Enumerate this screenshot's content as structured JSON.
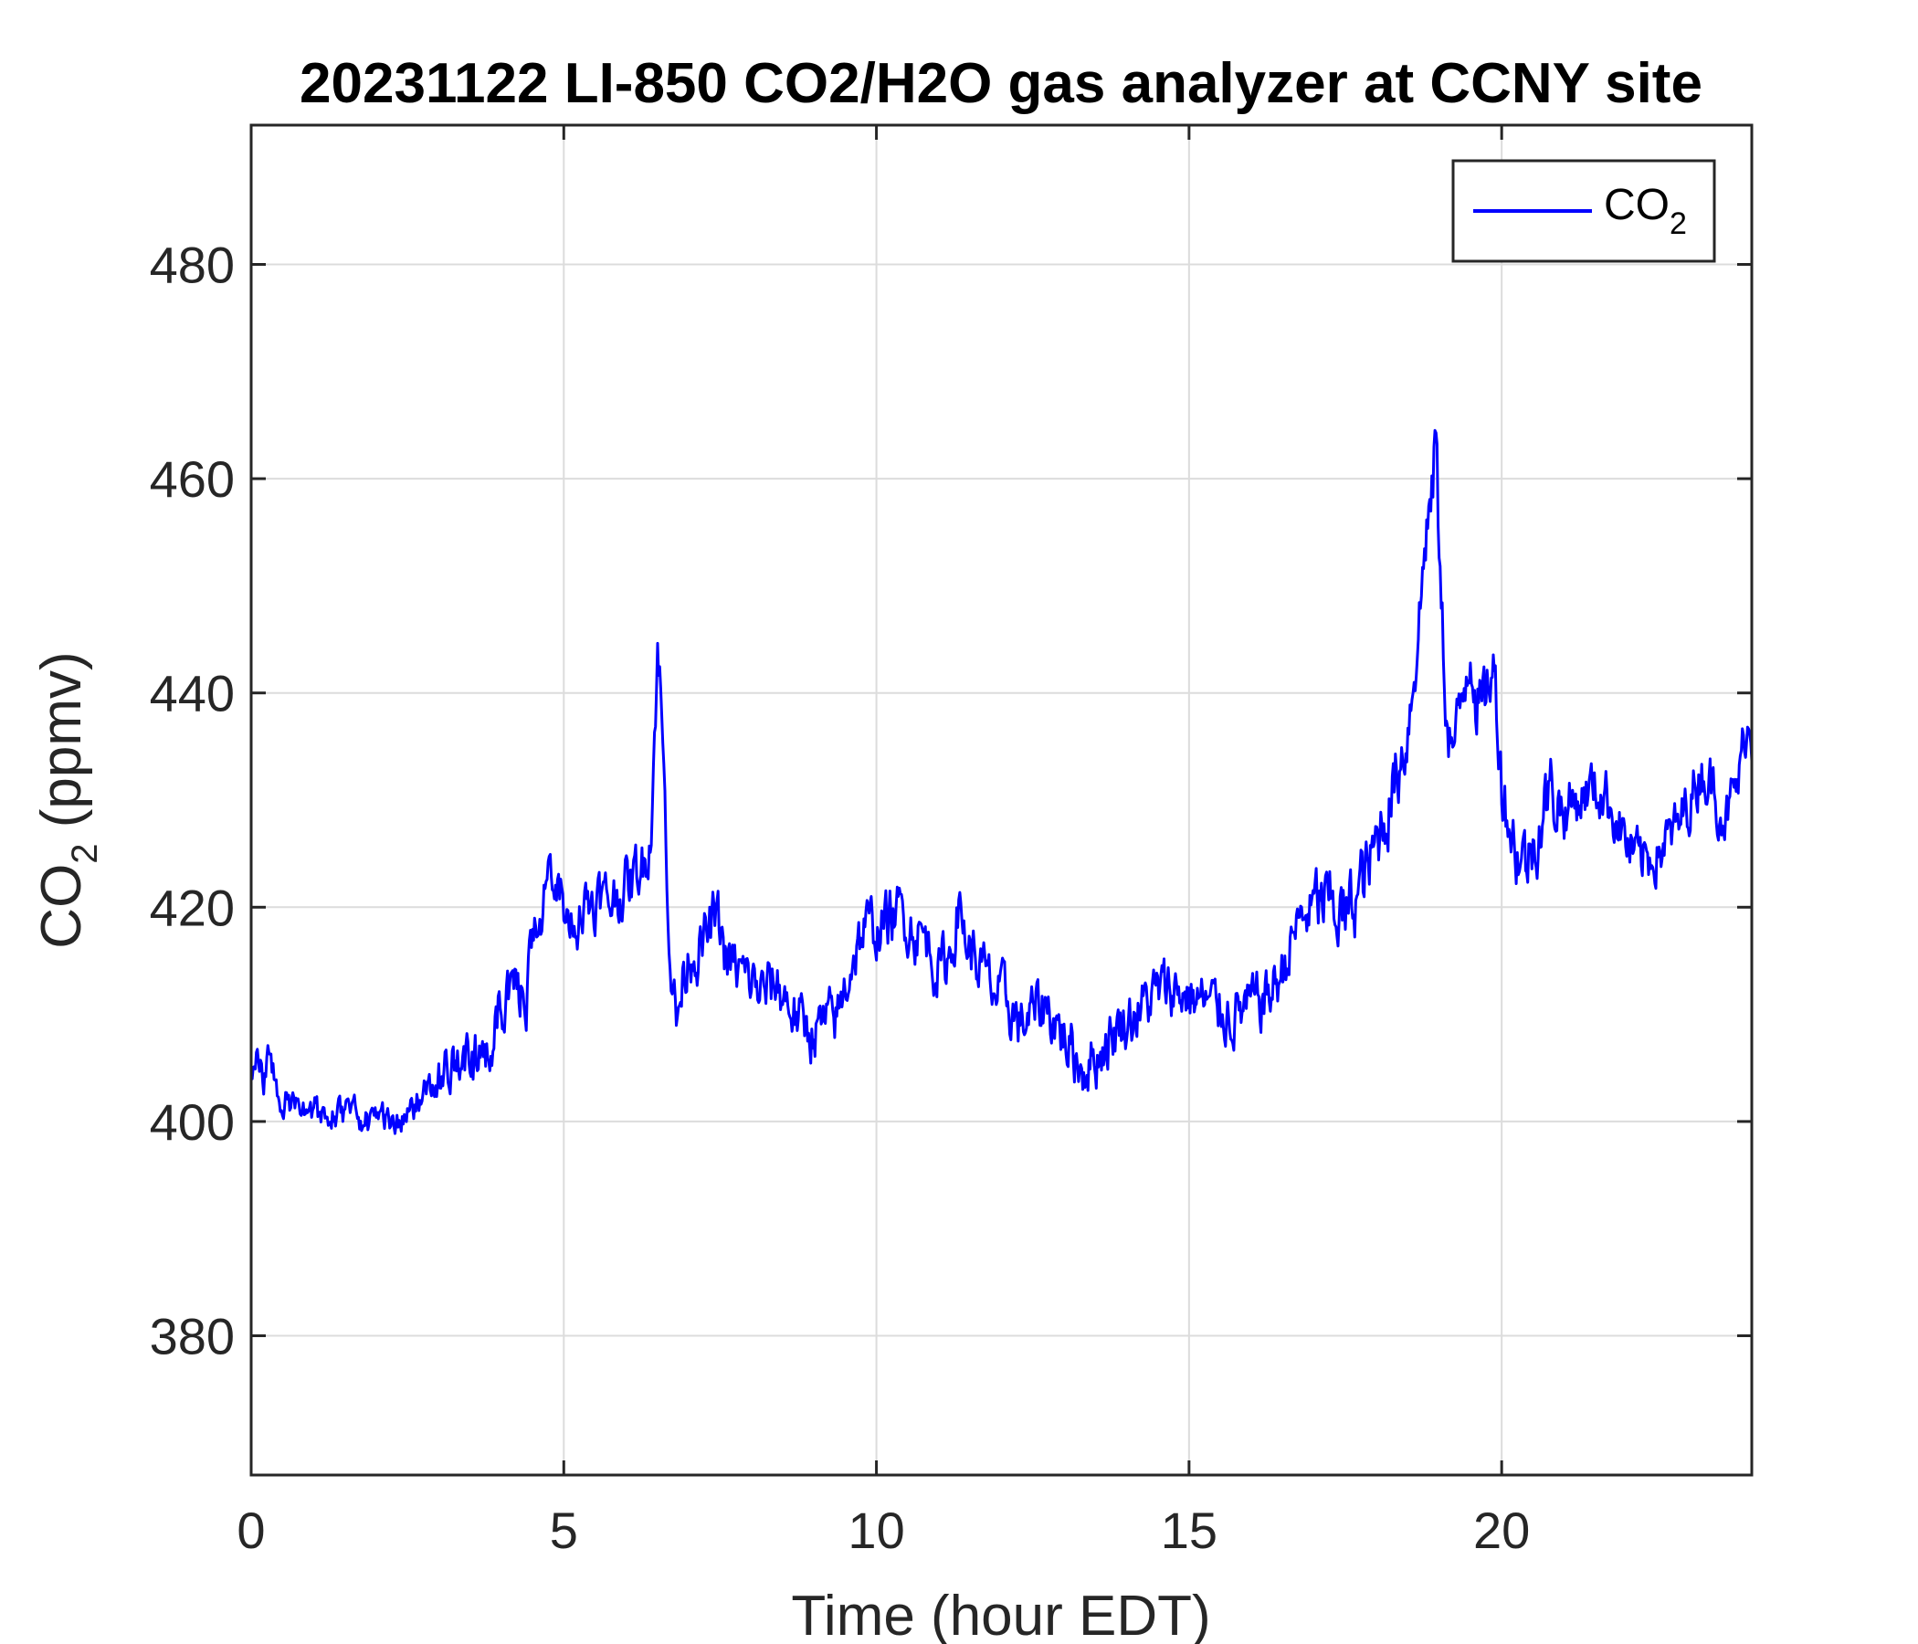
{
  "chart_data": {
    "type": "line",
    "title": "20231122 LI-850 CO2/H2O gas analyzer at CCNY site",
    "xlabel": "Time (hour EDT)",
    "ylabel": {
      "main": "CO",
      "sub": "2",
      "unit": " (ppmv)"
    },
    "xlim": [
      0,
      24
    ],
    "ylim": [
      367,
      493
    ],
    "xticks": [
      0,
      5,
      10,
      15,
      20
    ],
    "yticks": [
      380,
      400,
      420,
      440,
      460,
      480
    ],
    "grid": true,
    "legend": {
      "position": "top-right",
      "label_main": "CO",
      "label_sub": "2"
    },
    "colors": {
      "series": "#0000ff",
      "grid": "#dcdcdc",
      "axis": "#262626"
    },
    "series": [
      {
        "name": "CO2",
        "anchors": [
          [
            0.0,
            403
          ],
          [
            0.1,
            407
          ],
          [
            0.2,
            404
          ],
          [
            0.3,
            406
          ],
          [
            0.4,
            403
          ],
          [
            0.6,
            402
          ],
          [
            0.8,
            401.5
          ],
          [
            1.0,
            401
          ],
          [
            1.2,
            400.8
          ],
          [
            1.4,
            400.7
          ],
          [
            1.6,
            400.5
          ],
          [
            1.8,
            400.2
          ],
          [
            2.0,
            400
          ],
          [
            2.2,
            400.3
          ],
          [
            2.4,
            400.8
          ],
          [
            2.6,
            401.5
          ],
          [
            2.8,
            402.5
          ],
          [
            2.9,
            404
          ],
          [
            3.0,
            403
          ],
          [
            3.2,
            404
          ],
          [
            3.4,
            405
          ],
          [
            3.6,
            405.5
          ],
          [
            3.8,
            406.5
          ],
          [
            4.0,
            411
          ],
          [
            4.2,
            411.5
          ],
          [
            4.4,
            412
          ],
          [
            4.5,
            416
          ],
          [
            4.6,
            419
          ],
          [
            4.7,
            422
          ],
          [
            4.8,
            423
          ],
          [
            4.9,
            421
          ],
          [
            5.0,
            420
          ],
          [
            5.1,
            418
          ],
          [
            5.2,
            419
          ],
          [
            5.3,
            420
          ],
          [
            5.5,
            421
          ],
          [
            5.7,
            420.5
          ],
          [
            5.9,
            421.5
          ],
          [
            6.1,
            422.5
          ],
          [
            6.3,
            424.5
          ],
          [
            6.4,
            428
          ],
          [
            6.45,
            436
          ],
          [
            6.5,
            444
          ],
          [
            6.55,
            440
          ],
          [
            6.6,
            432
          ],
          [
            6.7,
            416
          ],
          [
            6.8,
            409
          ],
          [
            6.9,
            413
          ],
          [
            7.0,
            416
          ],
          [
            7.2,
            416
          ],
          [
            7.4,
            419
          ],
          [
            7.5,
            418
          ],
          [
            7.6,
            415
          ],
          [
            7.8,
            414
          ],
          [
            8.0,
            413
          ],
          [
            8.2,
            412
          ],
          [
            8.4,
            413
          ],
          [
            8.6,
            411
          ],
          [
            8.8,
            409
          ],
          [
            9.0,
            408.5
          ],
          [
            9.2,
            409
          ],
          [
            9.4,
            410
          ],
          [
            9.6,
            415
          ],
          [
            9.8,
            418
          ],
          [
            10.0,
            418
          ],
          [
            10.2,
            419
          ],
          [
            10.4,
            419.5
          ],
          [
            10.6,
            418
          ],
          [
            10.8,
            417
          ],
          [
            11.0,
            414
          ],
          [
            11.2,
            416
          ],
          [
            11.3,
            420
          ],
          [
            11.5,
            416
          ],
          [
            11.7,
            414
          ],
          [
            11.9,
            412
          ],
          [
            12.1,
            411
          ],
          [
            12.3,
            409
          ],
          [
            12.5,
            410
          ],
          [
            12.7,
            411
          ],
          [
            12.9,
            409
          ],
          [
            13.1,
            407
          ],
          [
            13.3,
            405
          ],
          [
            13.5,
            406
          ],
          [
            13.7,
            407.5
          ],
          [
            13.9,
            409
          ],
          [
            14.1,
            410
          ],
          [
            14.3,
            411
          ],
          [
            14.5,
            412
          ],
          [
            14.7,
            412.5
          ],
          [
            14.9,
            412
          ],
          [
            15.1,
            411.5
          ],
          [
            15.3,
            411
          ],
          [
            15.5,
            410.5
          ],
          [
            15.7,
            410
          ],
          [
            15.9,
            410.5
          ],
          [
            16.1,
            411
          ],
          [
            16.3,
            412
          ],
          [
            16.5,
            414
          ],
          [
            16.7,
            418
          ],
          [
            16.9,
            419.5
          ],
          [
            17.1,
            420.5
          ],
          [
            17.3,
            420
          ],
          [
            17.5,
            419
          ],
          [
            17.7,
            421.5
          ],
          [
            17.9,
            424
          ],
          [
            18.1,
            428
          ],
          [
            18.3,
            432
          ],
          [
            18.5,
            437
          ],
          [
            18.7,
            448
          ],
          [
            18.8,
            456
          ],
          [
            18.9,
            458
          ],
          [
            18.95,
            466
          ],
          [
            19.0,
            452
          ],
          [
            19.1,
            440
          ],
          [
            19.2,
            435
          ],
          [
            19.3,
            436
          ],
          [
            19.4,
            441
          ],
          [
            19.5,
            445
          ],
          [
            19.6,
            440
          ],
          [
            19.7,
            438
          ],
          [
            19.8,
            442
          ],
          [
            19.9,
            441
          ],
          [
            20.0,
            432
          ],
          [
            20.2,
            426
          ],
          [
            20.4,
            424
          ],
          [
            20.6,
            428
          ],
          [
            20.8,
            431
          ],
          [
            21.0,
            429
          ],
          [
            21.2,
            430
          ],
          [
            21.4,
            431
          ],
          [
            21.6,
            431
          ],
          [
            21.8,
            429
          ],
          [
            22.0,
            426
          ],
          [
            22.2,
            424
          ],
          [
            22.4,
            425
          ],
          [
            22.6,
            426
          ],
          [
            22.8,
            427
          ],
          [
            23.0,
            430
          ],
          [
            23.2,
            433
          ],
          [
            23.4,
            431
          ],
          [
            23.6,
            428.5
          ],
          [
            23.8,
            432
          ],
          [
            23.9,
            437
          ],
          [
            24.0,
            436
          ]
        ]
      }
    ]
  }
}
